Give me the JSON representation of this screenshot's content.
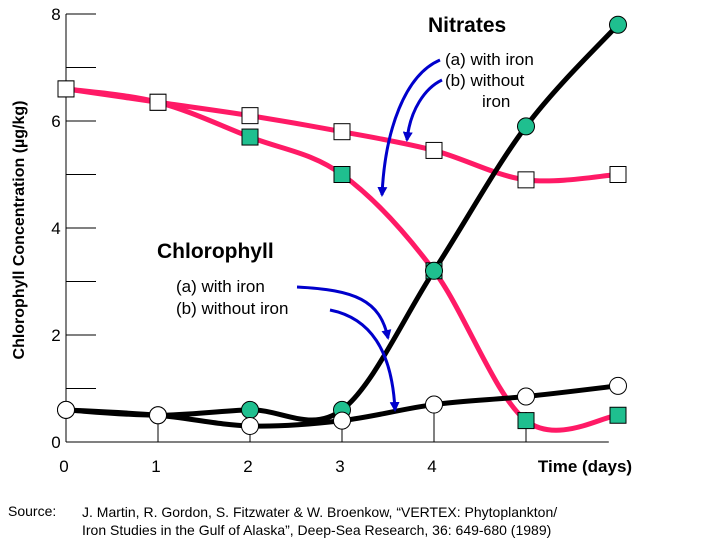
{
  "chart_data": {
    "type": "line",
    "ylabel": "Chlorophyll Concentration (µg/kg)",
    "xlabel": "Time (days)",
    "xlim": [
      0,
      6
    ],
    "ylim": [
      0,
      8
    ],
    "x_ticks": [
      "0",
      "1",
      "2",
      "3",
      "4"
    ],
    "y_ticks": [
      "0",
      "2",
      "4",
      "6",
      "8"
    ],
    "nitrates": {
      "title": "Nitrates",
      "label_a": "(a)  with iron",
      "label_b": "(b)  without",
      "label_b2": "iron"
    },
    "chlorophyll": {
      "title": "Chlorophyll",
      "label_a": "(a)  with iron",
      "label_b": "(b)  without iron"
    },
    "series": [
      {
        "group": "nitrates",
        "name": "(a) with iron",
        "color": "#ff1a66",
        "marker": "square-filled",
        "x": [
          0,
          1,
          2,
          3,
          4,
          5,
          6
        ],
        "y": [
          6.6,
          6.35,
          5.7,
          5.0,
          3.2,
          0.4,
          0.5
        ]
      },
      {
        "group": "nitrates",
        "name": "(b) without iron",
        "color": "#ff1a66",
        "marker": "square-open",
        "x": [
          0,
          1,
          2,
          3,
          4,
          5,
          6
        ],
        "y": [
          6.6,
          6.35,
          6.1,
          5.8,
          5.45,
          4.9,
          5.0
        ]
      },
      {
        "group": "chlorophyll",
        "name": "(a) with iron",
        "color": "#000000",
        "marker": "circle-filled",
        "x": [
          0,
          1,
          2,
          3,
          4,
          5,
          6
        ],
        "y": [
          0.6,
          0.5,
          0.6,
          0.6,
          3.2,
          5.9,
          7.8
        ]
      },
      {
        "group": "chlorophyll",
        "name": "(b) without iron",
        "color": "#000000",
        "marker": "circle-open",
        "x": [
          0,
          1,
          2,
          3,
          4,
          5,
          6
        ],
        "y": [
          0.6,
          0.5,
          0.3,
          0.4,
          0.7,
          0.85,
          1.05
        ]
      }
    ],
    "colors": {
      "marker_fill": "#1fbf8f",
      "arrow": "#0000cc"
    },
    "source_label": "Source:",
    "source_text": "J. Martin, R. Gordon, S. Fitzwater & W. Broenkow, “VERTEX: Phytoplankton/\nIron Studies in the Gulf of Alaska”, Deep-Sea Research, 36: 649-680 (1989)"
  }
}
